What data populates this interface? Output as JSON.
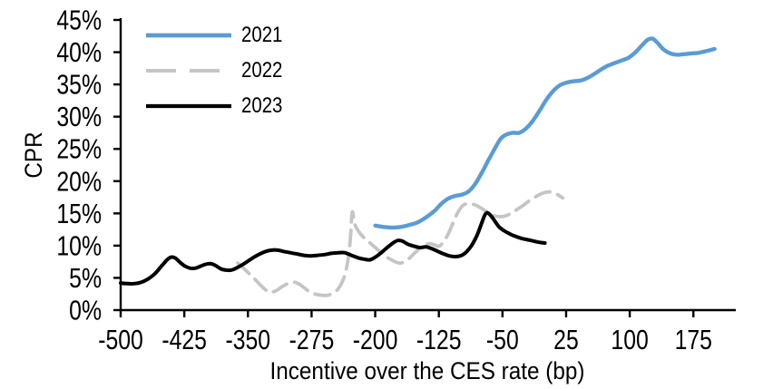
{
  "chart_data": {
    "type": "line",
    "title": "",
    "xlabel": "Incentive over the CES rate (bp)",
    "ylabel": "CPR",
    "xlim": [
      -500,
      225
    ],
    "ylim": [
      0,
      45
    ],
    "grid": false,
    "legend_position": "top-left",
    "x_ticks": [
      {
        "v": -500,
        "label": "-500"
      },
      {
        "v": -425,
        "label": "-425"
      },
      {
        "v": -350,
        "label": "-350"
      },
      {
        "v": -275,
        "label": "-275"
      },
      {
        "v": -200,
        "label": "-200"
      },
      {
        "v": -125,
        "label": "-125"
      },
      {
        "v": -50,
        "label": "-50"
      },
      {
        "v": 25,
        "label": "25"
      },
      {
        "v": 100,
        "label": "100"
      },
      {
        "v": 175,
        "label": "175"
      }
    ],
    "y_ticks": [
      {
        "v": 0,
        "label": "0%"
      },
      {
        "v": 5,
        "label": "5%"
      },
      {
        "v": 10,
        "label": "10%"
      },
      {
        "v": 15,
        "label": "15%"
      },
      {
        "v": 20,
        "label": "20%"
      },
      {
        "v": 25,
        "label": "25%"
      },
      {
        "v": 30,
        "label": "30%"
      },
      {
        "v": 35,
        "label": "35%"
      },
      {
        "v": 40,
        "label": "40%"
      },
      {
        "v": 45,
        "label": "45%"
      }
    ],
    "series": [
      {
        "name": "2021",
        "color": "#5B9BD5",
        "style": "solid",
        "width": 4.4,
        "points": [
          [
            -200,
            13.1
          ],
          [
            -190,
            12.9
          ],
          [
            -180,
            12.8
          ],
          [
            -170,
            12.9
          ],
          [
            -160,
            13.2
          ],
          [
            -150,
            13.6
          ],
          [
            -140,
            14.4
          ],
          [
            -130,
            15.4
          ],
          [
            -122,
            16.5
          ],
          [
            -114,
            17.3
          ],
          [
            -106,
            17.7
          ],
          [
            -98,
            17.9
          ],
          [
            -90,
            18.4
          ],
          [
            -82,
            19.6
          ],
          [
            -74,
            21.4
          ],
          [
            -66,
            23.4
          ],
          [
            -58,
            25.3
          ],
          [
            -52,
            26.6
          ],
          [
            -46,
            27.2
          ],
          [
            -38,
            27.5
          ],
          [
            -30,
            27.5
          ],
          [
            -22,
            28.2
          ],
          [
            -14,
            29.4
          ],
          [
            -6,
            31.0
          ],
          [
            2,
            32.7
          ],
          [
            10,
            34.0
          ],
          [
            18,
            34.9
          ],
          [
            26,
            35.3
          ],
          [
            34,
            35.5
          ],
          [
            42,
            35.6
          ],
          [
            50,
            36.0
          ],
          [
            58,
            36.6
          ],
          [
            66,
            37.3
          ],
          [
            74,
            37.9
          ],
          [
            82,
            38.3
          ],
          [
            90,
            38.7
          ],
          [
            98,
            39.1
          ],
          [
            106,
            39.9
          ],
          [
            114,
            41.0
          ],
          [
            121,
            41.9
          ],
          [
            127,
            42.1
          ],
          [
            133,
            41.4
          ],
          [
            140,
            40.4
          ],
          [
            148,
            39.8
          ],
          [
            156,
            39.6
          ],
          [
            164,
            39.7
          ],
          [
            172,
            39.8
          ],
          [
            181,
            39.9
          ],
          [
            191,
            40.2
          ],
          [
            200,
            40.5
          ]
        ]
      },
      {
        "name": "2022",
        "color": "#C5C5C5",
        "style": "dashed",
        "dash": "17 9",
        "legend_dash": "33 15",
        "width": 3.8,
        "points": [
          [
            -362,
            7.3
          ],
          [
            -352,
            6.1
          ],
          [
            -342,
            4.8
          ],
          [
            -333,
            3.6
          ],
          [
            -325,
            2.8
          ],
          [
            -317,
            3.0
          ],
          [
            -309,
            3.7
          ],
          [
            -301,
            4.2
          ],
          [
            -294,
            4.3
          ],
          [
            -287,
            3.8
          ],
          [
            -279,
            3.0
          ],
          [
            -271,
            2.5
          ],
          [
            -263,
            2.3
          ],
          [
            -256,
            2.3
          ],
          [
            -249,
            2.7
          ],
          [
            -243,
            3.4
          ],
          [
            -237,
            5.0
          ],
          [
            -232,
            7.8
          ],
          [
            -229,
            11.5
          ],
          [
            -227,
            15.2
          ],
          [
            -224,
            13.3
          ],
          [
            -219,
            12.1
          ],
          [
            -213,
            11.2
          ],
          [
            -206,
            10.4
          ],
          [
            -199,
            9.6
          ],
          [
            -192,
            8.8
          ],
          [
            -185,
            8.1
          ],
          [
            -178,
            7.6
          ],
          [
            -171,
            7.3
          ],
          [
            -164,
            7.6
          ],
          [
            -157,
            8.4
          ],
          [
            -150,
            9.3
          ],
          [
            -143,
            10.0
          ],
          [
            -136,
            10.3
          ],
          [
            -130,
            10.1
          ],
          [
            -125,
            9.9
          ],
          [
            -120,
            10.5
          ],
          [
            -114,
            11.8
          ],
          [
            -108,
            13.6
          ],
          [
            -102,
            15.3
          ],
          [
            -96,
            16.3
          ],
          [
            -89,
            16.5
          ],
          [
            -82,
            16.3
          ],
          [
            -75,
            15.8
          ],
          [
            -68,
            15.2
          ],
          [
            -61,
            14.7
          ],
          [
            -54,
            14.5
          ],
          [
            -47,
            14.6
          ],
          [
            -40,
            15.0
          ],
          [
            -33,
            15.6
          ],
          [
            -26,
            16.2
          ],
          [
            -19,
            16.9
          ],
          [
            -12,
            17.5
          ],
          [
            -5,
            18.0
          ],
          [
            2,
            18.3
          ],
          [
            8,
            18.3
          ],
          [
            15,
            17.9
          ],
          [
            21,
            17.4
          ]
        ]
      },
      {
        "name": "2023",
        "color": "#000000",
        "style": "solid",
        "width": 4,
        "points": [
          [
            -500,
            4.2
          ],
          [
            -492,
            4.1
          ],
          [
            -484,
            4.1
          ],
          [
            -476,
            4.3
          ],
          [
            -468,
            4.8
          ],
          [
            -460,
            5.6
          ],
          [
            -452,
            6.8
          ],
          [
            -446,
            7.7
          ],
          [
            -441,
            8.2
          ],
          [
            -436,
            8.1
          ],
          [
            -430,
            7.4
          ],
          [
            -424,
            6.8
          ],
          [
            -418,
            6.5
          ],
          [
            -412,
            6.5
          ],
          [
            -406,
            6.8
          ],
          [
            -400,
            7.1
          ],
          [
            -394,
            7.2
          ],
          [
            -388,
            6.9
          ],
          [
            -382,
            6.4
          ],
          [
            -376,
            6.2
          ],
          [
            -370,
            6.2
          ],
          [
            -364,
            6.5
          ],
          [
            -357,
            7.0
          ],
          [
            -350,
            7.6
          ],
          [
            -343,
            8.2
          ],
          [
            -336,
            8.7
          ],
          [
            -329,
            9.1
          ],
          [
            -322,
            9.3
          ],
          [
            -315,
            9.3
          ],
          [
            -308,
            9.1
          ],
          [
            -300,
            8.9
          ],
          [
            -292,
            8.7
          ],
          [
            -284,
            8.5
          ],
          [
            -276,
            8.4
          ],
          [
            -268,
            8.5
          ],
          [
            -260,
            8.6
          ],
          [
            -252,
            8.8
          ],
          [
            -244,
            8.9
          ],
          [
            -236,
            8.9
          ],
          [
            -228,
            8.5
          ],
          [
            -220,
            8.1
          ],
          [
            -213,
            7.9
          ],
          [
            -206,
            7.8
          ],
          [
            -199,
            8.3
          ],
          [
            -192,
            9.0
          ],
          [
            -185,
            9.8
          ],
          [
            -178,
            10.5
          ],
          [
            -173,
            10.8
          ],
          [
            -168,
            10.7
          ],
          [
            -161,
            10.2
          ],
          [
            -154,
            9.9
          ],
          [
            -147,
            9.7
          ],
          [
            -140,
            9.8
          ],
          [
            -133,
            9.5
          ],
          [
            -126,
            9.1
          ],
          [
            -119,
            8.7
          ],
          [
            -112,
            8.4
          ],
          [
            -105,
            8.3
          ],
          [
            -98,
            8.5
          ],
          [
            -92,
            9.1
          ],
          [
            -86,
            10.1
          ],
          [
            -80,
            11.6
          ],
          [
            -75,
            13.3
          ],
          [
            -71,
            14.7
          ],
          [
            -68,
            15.1
          ],
          [
            -64,
            14.7
          ],
          [
            -59,
            13.8
          ],
          [
            -54,
            12.9
          ],
          [
            -48,
            12.3
          ],
          [
            -41,
            11.8
          ],
          [
            -34,
            11.4
          ],
          [
            -27,
            11.1
          ],
          [
            -20,
            10.9
          ],
          [
            -13,
            10.7
          ],
          [
            -6,
            10.5
          ],
          [
            0,
            10.4
          ]
        ]
      }
    ]
  }
}
